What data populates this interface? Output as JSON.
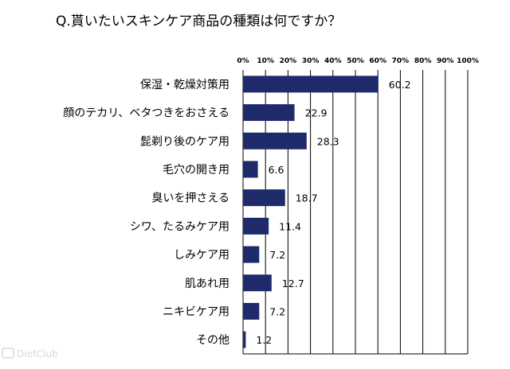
{
  "chart_data": {
    "type": "bar",
    "orientation": "horizontal",
    "title": "Q.貰いたいスキンケア商品の種類は何ですか？",
    "categories": [
      "保湿・乾燥対策用",
      "顔のテカリ、ベタつきをおさえる",
      "髭剃り後のケア用",
      "毛穴の開き用",
      "臭いを押さえる",
      "シワ、たるみケア用",
      "しみケア用",
      "肌あれ用",
      "ニキビケア用",
      "その他"
    ],
    "values": [
      60.2,
      22.9,
      28.3,
      6.6,
      18.7,
      11.4,
      7.2,
      12.7,
      7.2,
      1.2
    ],
    "value_labels": [
      "60.2",
      "22.9",
      "28.3",
      "6.6",
      "18.7",
      "11.4",
      "7.2",
      "12.7",
      "7.2",
      "1.2"
    ],
    "xlim": [
      0,
      100
    ],
    "xticks": [
      "0%",
      "10%",
      "20%",
      "30%",
      "40%",
      "50%",
      "60%",
      "70%",
      "80%",
      "90%",
      "100%"
    ],
    "grid": true,
    "bar_color": "#1f2a6b"
  },
  "watermark": "DietClub"
}
